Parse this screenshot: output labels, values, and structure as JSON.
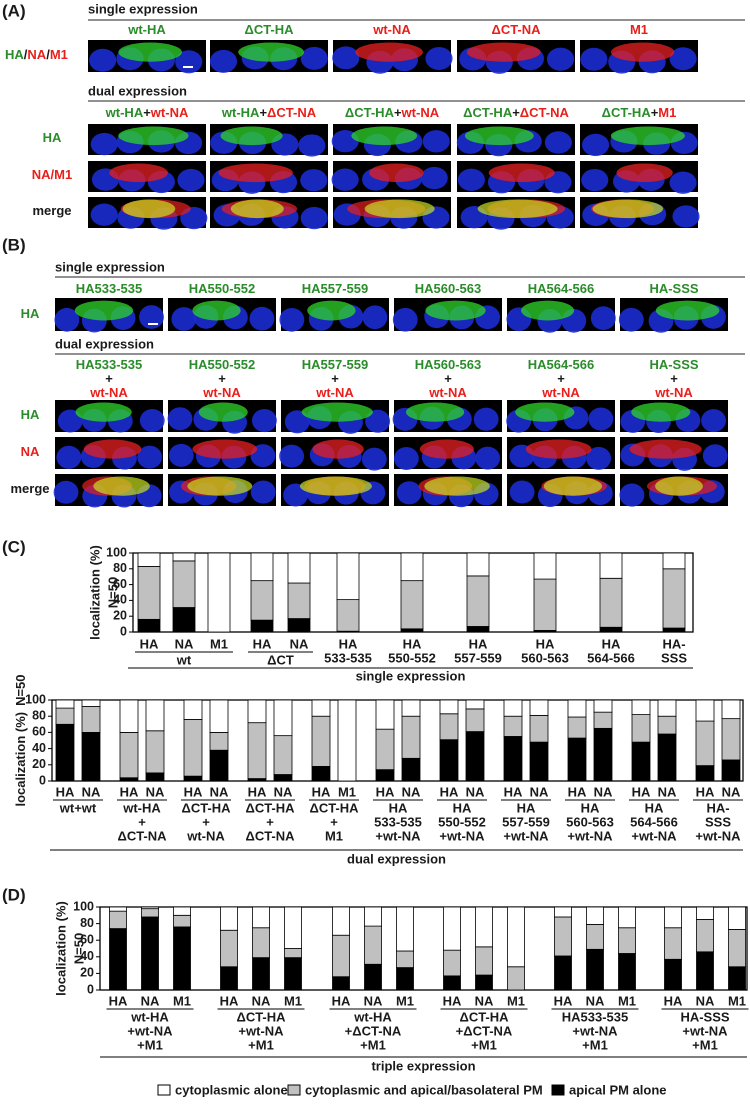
{
  "panel_a": {
    "label": "(A)",
    "single": {
      "title": "single expression",
      "row_labels": [
        [
          {
            "text": "HA",
            "color": "#2a8c2a"
          },
          {
            "text": "/",
            "color": "#1a1a1a"
          },
          {
            "text": "NA",
            "color": "#e8201c"
          },
          {
            "text": "/",
            "color": "#1a1a1a"
          },
          {
            "text": "M1",
            "color": "#e8201c"
          }
        ]
      ],
      "columns": [
        [
          [
            {
              "text": "wt-HA",
              "color": "#2a8c2a"
            }
          ]
        ],
        [
          [
            {
              "text": "ΔCT-HA",
              "color": "#2a8c2a"
            }
          ]
        ],
        [
          [
            {
              "text": "wt-NA",
              "color": "#e8201c"
            }
          ]
        ],
        [
          [
            {
              "text": "ΔCT-NA",
              "color": "#e8201c"
            }
          ]
        ],
        [
          [
            {
              "text": "M1",
              "color": "#e8201c"
            }
          ]
        ]
      ]
    },
    "dual": {
      "title": "dual expression",
      "row_labels": [
        [
          {
            "text": "HA",
            "color": "#2a8c2a"
          }
        ],
        [
          {
            "text": "NA/M1",
            "color": "#e8201c"
          }
        ],
        [
          {
            "text": "merge",
            "color": "#1a1a1a"
          }
        ]
      ],
      "columns": [
        [
          [
            {
              "text": "wt-HA",
              "color": "#2a8c2a"
            },
            {
              "text": "+",
              "color": "#1a1a1a"
            },
            {
              "text": "wt-NA",
              "color": "#e8201c"
            }
          ]
        ],
        [
          [
            {
              "text": "wt-HA",
              "color": "#2a8c2a"
            },
            {
              "text": "+",
              "color": "#1a1a1a"
            },
            {
              "text": "ΔCT-NA",
              "color": "#e8201c"
            }
          ]
        ],
        [
          [
            {
              "text": "ΔCT-HA",
              "color": "#2a8c2a"
            },
            {
              "text": "+",
              "color": "#1a1a1a"
            },
            {
              "text": "wt-NA",
              "color": "#e8201c"
            }
          ]
        ],
        [
          [
            {
              "text": "ΔCT-HA",
              "color": "#2a8c2a"
            },
            {
              "text": "+",
              "color": "#1a1a1a"
            },
            {
              "text": "ΔCT-NA",
              "color": "#e8201c"
            }
          ]
        ],
        [
          [
            {
              "text": "ΔCT-HA",
              "color": "#2a8c2a"
            },
            {
              "text": "+",
              "color": "#1a1a1a"
            },
            {
              "text": "M1",
              "color": "#e8201c"
            }
          ]
        ]
      ]
    }
  },
  "panel_b": {
    "label": "(B)",
    "single": {
      "title": "single expression",
      "row_labels": [
        [
          {
            "text": "HA",
            "color": "#2a8c2a"
          }
        ]
      ],
      "columns": [
        [
          [
            {
              "text": "HA533-535",
              "color": "#2a8c2a"
            }
          ]
        ],
        [
          [
            {
              "text": "HA550-552",
              "color": "#2a8c2a"
            }
          ]
        ],
        [
          [
            {
              "text": "HA557-559",
              "color": "#2a8c2a"
            }
          ]
        ],
        [
          [
            {
              "text": "HA560-563",
              "color": "#2a8c2a"
            }
          ]
        ],
        [
          [
            {
              "text": "HA564-566",
              "color": "#2a8c2a"
            }
          ]
        ],
        [
          [
            {
              "text": "HA-SSS",
              "color": "#2a8c2a"
            }
          ]
        ]
      ]
    },
    "dual": {
      "title": "dual expression",
      "row_labels": [
        [
          {
            "text": "HA",
            "color": "#2a8c2a"
          }
        ],
        [
          {
            "text": "NA",
            "color": "#e8201c"
          }
        ],
        [
          {
            "text": "merge",
            "color": "#1a1a1a"
          }
        ]
      ],
      "columns": [
        [
          [
            {
              "text": "HA533-535",
              "color": "#2a8c2a"
            }
          ],
          [
            {
              "text": "+",
              "color": "#1a1a1a"
            }
          ],
          [
            {
              "text": "wt-NA",
              "color": "#e8201c"
            }
          ]
        ],
        [
          [
            {
              "text": "HA550-552",
              "color": "#2a8c2a"
            }
          ],
          [
            {
              "text": "+",
              "color": "#1a1a1a"
            }
          ],
          [
            {
              "text": "wt-NA",
              "color": "#e8201c"
            }
          ]
        ],
        [
          [
            {
              "text": "HA557-559",
              "color": "#2a8c2a"
            }
          ],
          [
            {
              "text": "+",
              "color": "#1a1a1a"
            }
          ],
          [
            {
              "text": "wt-NA",
              "color": "#e8201c"
            }
          ]
        ],
        [
          [
            {
              "text": "HA560-563",
              "color": "#2a8c2a"
            }
          ],
          [
            {
              "text": "+",
              "color": "#1a1a1a"
            }
          ],
          [
            {
              "text": "wt-NA",
              "color": "#e8201c"
            }
          ]
        ],
        [
          [
            {
              "text": "HA564-566",
              "color": "#2a8c2a"
            }
          ],
          [
            {
              "text": "+",
              "color": "#1a1a1a"
            }
          ],
          [
            {
              "text": "wt-NA",
              "color": "#e8201c"
            }
          ]
        ],
        [
          [
            {
              "text": "HA-SSS",
              "color": "#2a8c2a"
            }
          ],
          [
            {
              "text": "+",
              "color": "#1a1a1a"
            }
          ],
          [
            {
              "text": "wt-NA",
              "color": "#e8201c"
            }
          ]
        ]
      ]
    }
  },
  "panel_c_label": "(C)",
  "panel_d_label": "(D)",
  "chart_data": [
    {
      "type": "stacked_bar",
      "ylabel": [
        "localization (%)",
        "N=50"
      ],
      "xlabel": "single expression",
      "ylim": [
        0,
        100
      ],
      "yticks": [
        0,
        20,
        40,
        60,
        80,
        100
      ],
      "groups": [
        {
          "label": [
            "wt"
          ],
          "categories": [
            [
              "HA"
            ],
            [
              "NA"
            ],
            [
              "M1"
            ]
          ]
        },
        {
          "label": [
            "ΔCT"
          ],
          "categories": [
            [
              "HA"
            ],
            [
              "NA"
            ]
          ]
        },
        {
          "label": null,
          "categories": [
            [
              "HA",
              "533-535"
            ]
          ]
        },
        {
          "label": null,
          "categories": [
            [
              "HA",
              "550-552"
            ]
          ]
        },
        {
          "label": null,
          "categories": [
            [
              "HA",
              "557-559"
            ]
          ]
        },
        {
          "label": null,
          "categories": [
            [
              "HA",
              "560-563"
            ]
          ]
        },
        {
          "label": null,
          "categories": [
            [
              "HA",
              "564-566"
            ]
          ]
        },
        {
          "label": null,
          "categories": [
            [
              "HA-",
              "SSS"
            ]
          ]
        }
      ],
      "series": [
        {
          "color": "#000000",
          "values": [
            16,
            31,
            0,
            15,
            17,
            1,
            4,
            7,
            2,
            6,
            5
          ]
        },
        {
          "color": "#c0c0c0",
          "values": [
            67,
            59,
            0,
            50,
            45,
            40,
            61,
            64,
            65,
            62,
            75
          ]
        },
        {
          "color": "#ffffff",
          "values": [
            17,
            10,
            100,
            35,
            38,
            59,
            35,
            29,
            33,
            32,
            20
          ]
        }
      ]
    },
    {
      "type": "stacked_bar",
      "ylabel": [
        "localization (%)",
        "N=50"
      ],
      "xlabel": "dual expression",
      "ylim": [
        0,
        100
      ],
      "yticks": [
        0,
        20,
        40,
        60,
        80,
        100
      ],
      "groups": [
        {
          "label": [
            "wt+wt"
          ],
          "categories": [
            [
              "HA"
            ],
            [
              "NA"
            ]
          ]
        },
        {
          "label": [
            "wt-HA",
            "+",
            "ΔCT-NA"
          ],
          "categories": [
            [
              "HA"
            ],
            [
              "NA"
            ]
          ]
        },
        {
          "label": [
            "ΔCT-HA",
            "+",
            "wt-NA"
          ],
          "categories": [
            [
              "HA"
            ],
            [
              "NA"
            ]
          ]
        },
        {
          "label": [
            "ΔCT-HA",
            "+",
            "ΔCT-NA"
          ],
          "categories": [
            [
              "HA"
            ],
            [
              "NA"
            ]
          ]
        },
        {
          "label": [
            "ΔCT-HA",
            "+",
            "M1"
          ],
          "categories": [
            [
              "HA"
            ],
            [
              "M1"
            ]
          ]
        },
        {
          "label": [
            "HA",
            "533-535",
            "+wt-NA"
          ],
          "categories": [
            [
              "HA"
            ],
            [
              "NA"
            ]
          ]
        },
        {
          "label": [
            "HA",
            "550-552",
            "+wt-NA"
          ],
          "categories": [
            [
              "HA"
            ],
            [
              "NA"
            ]
          ]
        },
        {
          "label": [
            "HA",
            "557-559",
            "+wt-NA"
          ],
          "categories": [
            [
              "HA"
            ],
            [
              "NA"
            ]
          ]
        },
        {
          "label": [
            "HA",
            "560-563",
            "+wt-NA"
          ],
          "categories": [
            [
              "HA"
            ],
            [
              "NA"
            ]
          ]
        },
        {
          "label": [
            "HA",
            "564-566",
            "+wt-NA"
          ],
          "categories": [
            [
              "HA"
            ],
            [
              "NA"
            ]
          ]
        },
        {
          "label": [
            "HA-",
            "SSS",
            "+wt-NA"
          ],
          "categories": [
            [
              "HA"
            ],
            [
              "NA"
            ]
          ]
        }
      ],
      "series": [
        {
          "color": "#000000",
          "values": [
            70,
            60,
            4,
            10,
            6,
            38,
            3,
            8,
            18,
            0,
            14,
            28,
            51,
            61,
            55,
            48,
            53,
            65,
            48,
            58,
            19,
            26
          ]
        },
        {
          "color": "#c0c0c0",
          "values": [
            20,
            32,
            56,
            52,
            70,
            22,
            69,
            48,
            62,
            0,
            50,
            52,
            32,
            28,
            25,
            33,
            26,
            20,
            34,
            22,
            55,
            51
          ]
        },
        {
          "color": "#ffffff",
          "values": [
            10,
            8,
            40,
            38,
            24,
            40,
            28,
            44,
            20,
            100,
            36,
            20,
            17,
            11,
            20,
            19,
            21,
            15,
            18,
            20,
            26,
            23
          ]
        }
      ]
    },
    {
      "type": "stacked_bar",
      "ylabel": [
        "localization (%)",
        "N=50"
      ],
      "xlabel": "triple expression",
      "ylim": [
        0,
        100
      ],
      "yticks": [
        0,
        20,
        40,
        60,
        80,
        100
      ],
      "groups": [
        {
          "label": [
            "wt-HA",
            "+wt-NA",
            "+M1"
          ],
          "categories": [
            [
              "HA"
            ],
            [
              "NA"
            ],
            [
              "M1"
            ]
          ]
        },
        {
          "label": [
            "ΔCT-HA",
            "+wt-NA",
            "+M1"
          ],
          "categories": [
            [
              "HA"
            ],
            [
              "NA"
            ],
            [
              "M1"
            ]
          ]
        },
        {
          "label": [
            "wt-HA",
            "+ΔCT-NA",
            "+M1"
          ],
          "categories": [
            [
              "HA"
            ],
            [
              "NA"
            ],
            [
              "M1"
            ]
          ]
        },
        {
          "label": [
            "ΔCT-HA",
            "+ΔCT-NA",
            "+M1"
          ],
          "categories": [
            [
              "HA"
            ],
            [
              "NA"
            ],
            [
              "M1"
            ]
          ]
        },
        {
          "label": [
            "HA533-535",
            "+wt-NA",
            "+M1"
          ],
          "categories": [
            [
              "HA"
            ],
            [
              "NA"
            ],
            [
              "M1"
            ]
          ]
        },
        {
          "label": [
            "HA-SSS",
            "+wt-NA",
            "+M1"
          ],
          "categories": [
            [
              "HA"
            ],
            [
              "NA"
            ],
            [
              "M1"
            ]
          ]
        }
      ],
      "series": [
        {
          "name": "apical PM alone",
          "color": "#000000",
          "values": [
            74,
            88,
            76,
            28,
            39,
            39,
            16,
            31,
            27,
            17,
            18,
            0,
            41,
            49,
            44,
            37,
            46,
            28
          ]
        },
        {
          "name": "cytoplasmic and apical/basolateral PM",
          "color": "#c0c0c0",
          "values": [
            21,
            10,
            14,
            44,
            36,
            11,
            50,
            46,
            20,
            31,
            34,
            28,
            47,
            30,
            31,
            38,
            39,
            45
          ]
        },
        {
          "name": "cytoplasmic alone",
          "color": "#ffffff",
          "values": [
            5,
            2,
            10,
            28,
            25,
            50,
            34,
            23,
            53,
            52,
            48,
            72,
            12,
            21,
            25,
            25,
            15,
            27
          ]
        }
      ]
    }
  ]
}
